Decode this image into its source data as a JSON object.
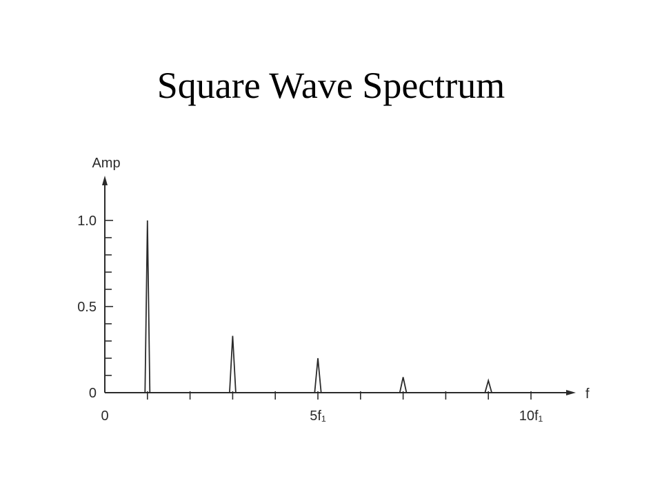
{
  "slide": {
    "title": "Square Wave Spectrum"
  },
  "chart_data": {
    "type": "bar",
    "title": "",
    "xlabel": "f",
    "ylabel": "Amp",
    "x": [
      1,
      3,
      5,
      7,
      9
    ],
    "values": [
      1.0,
      0.33,
      0.2,
      0.09,
      0.07
    ],
    "xlim": [
      0,
      11
    ],
    "ylim": [
      0,
      1.0
    ],
    "x_tick_labels": [
      {
        "value": 0,
        "label": "0"
      },
      {
        "value": 5,
        "label": "5f₁"
      },
      {
        "value": 10,
        "label": "10f₁"
      }
    ],
    "y_tick_labels": [
      {
        "value": 0,
        "label": "0"
      },
      {
        "value": 0.5,
        "label": "0.5"
      },
      {
        "value": 1.0,
        "label": "1.0"
      }
    ],
    "y_minor_step": 0.1,
    "x_minor_step": 1,
    "grid": false,
    "line_color": "#2a2a2a"
  }
}
